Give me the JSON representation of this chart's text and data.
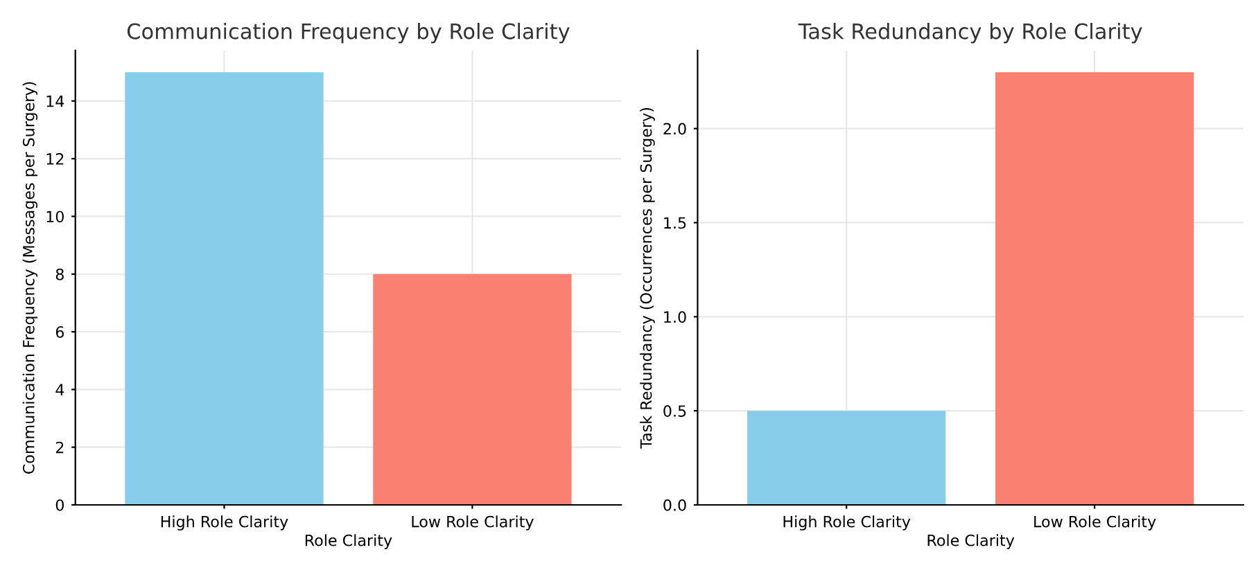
{
  "chart_data": [
    {
      "type": "bar",
      "title": "Communication Frequency by Role Clarity",
      "xlabel": "Role Clarity",
      "ylabel": "Communication Frequency (Messages per Surgery)",
      "categories": [
        "High Role Clarity",
        "Low Role Clarity"
      ],
      "values": [
        15,
        8
      ],
      "colors": [
        "#87ceeb",
        "#fa8072"
      ],
      "ylim": [
        0,
        15.75
      ],
      "yticks": [
        0,
        2,
        4,
        6,
        8,
        10,
        12,
        14
      ],
      "grid": true
    },
    {
      "type": "bar",
      "title": "Task Redundancy by Role Clarity",
      "xlabel": "Role Clarity",
      "ylabel": "Task Redundancy (Occurrences per Surgery)",
      "categories": [
        "High Role Clarity",
        "Low Role Clarity"
      ],
      "values": [
        0.5,
        2.3
      ],
      "colors": [
        "#87ceeb",
        "#fa8072"
      ],
      "ylim": [
        0,
        2.415
      ],
      "yticks": [
        {
          "value": 0,
          "label": "0.0"
        },
        {
          "value": 0.5,
          "label": "0.5"
        },
        {
          "value": 1.0,
          "label": "1.0"
        },
        {
          "value": 1.5,
          "label": "1.5"
        },
        {
          "value": 2.0,
          "label": "2.0"
        }
      ],
      "grid": true
    }
  ]
}
